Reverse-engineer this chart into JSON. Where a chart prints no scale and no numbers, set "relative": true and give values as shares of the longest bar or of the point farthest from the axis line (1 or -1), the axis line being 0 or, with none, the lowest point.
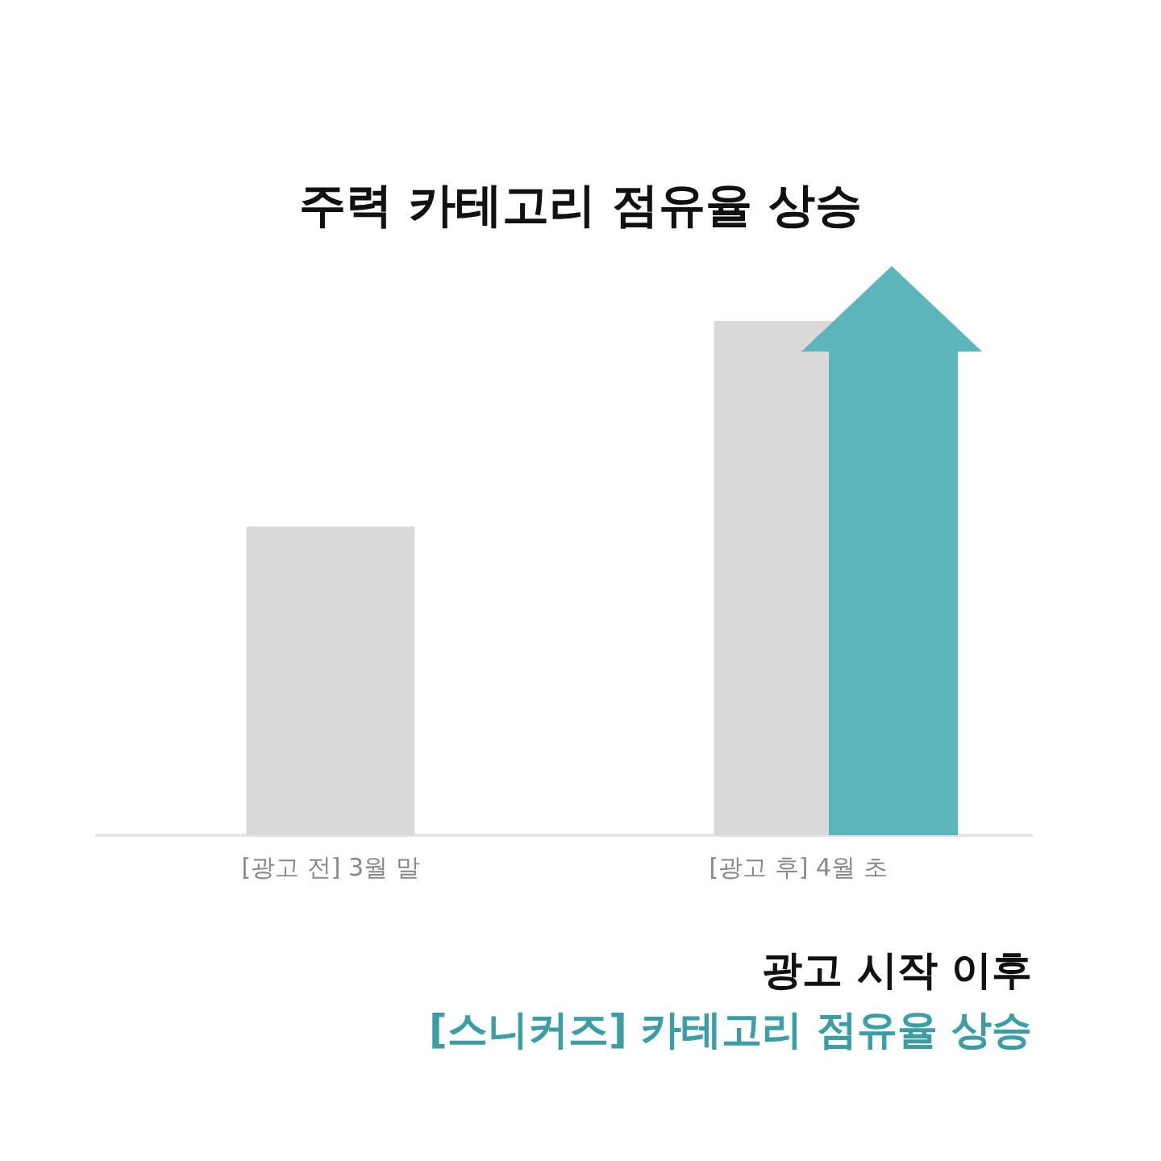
{
  "chart_data": {
    "type": "bar",
    "title": "주력 카테고리 점유율 상승",
    "categories": [
      "[광고 전] 3월 말",
      "[광고 후] 4월 초"
    ],
    "values": [
      0.6,
      1
    ],
    "color": "#d9d9d9",
    "relative": true,
    "grid": false,
    "legend": false,
    "annotations": [
      "광고 시작 이후",
      "[스니커즈] 카테고리 점유율 상승"
    ]
  }
}
